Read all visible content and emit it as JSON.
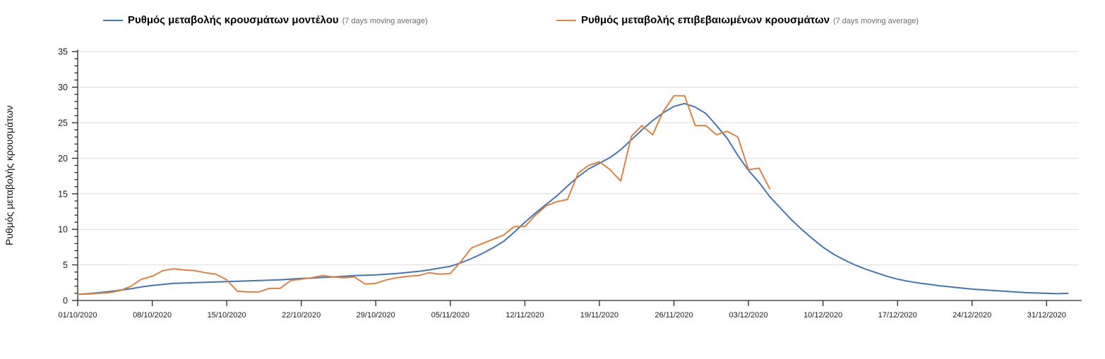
{
  "legend": [
    {
      "label": "Ρυθμός μεταβολής κρουσμάτων μοντέλου",
      "suffix": "(7 days moving average)",
      "color": "#4674af"
    },
    {
      "label": "Ρυθμός μεταβολής επιβεβαιωμένων κρουσμάτων",
      "suffix": "(7 days moving average)",
      "color": "#dc8244"
    }
  ],
  "chart_data": {
    "type": "line",
    "title": "",
    "xlabel": "",
    "ylabel": "Ρυθμός μεταβολής κρουσμάτων",
    "ylim": [
      0,
      35
    ],
    "y_major_step": 5,
    "y_minor_step": 1,
    "grid": "horizontal-major",
    "legend_position": "top",
    "x_unit": "days since 01/10/2020, 1 point per day",
    "x_ticks": [
      {
        "day": 0,
        "label": "01/10/2020"
      },
      {
        "day": 7,
        "label": "08/10/2020"
      },
      {
        "day": 14,
        "label": "15/10/2020"
      },
      {
        "day": 21,
        "label": "22/10/2020"
      },
      {
        "day": 28,
        "label": "29/10/2020"
      },
      {
        "day": 35,
        "label": "05/11/2020"
      },
      {
        "day": 42,
        "label": "12/11/2020"
      },
      {
        "day": 49,
        "label": "19/11/2020"
      },
      {
        "day": 56,
        "label": "26/11/2020"
      },
      {
        "day": 63,
        "label": "03/12/2020"
      },
      {
        "day": 70,
        "label": "10/12/2020"
      },
      {
        "day": 77,
        "label": "17/12/2020"
      },
      {
        "day": 84,
        "label": "24/12/2020"
      },
      {
        "day": 91,
        "label": "31/12/2020"
      }
    ],
    "series": [
      {
        "id": "model",
        "name": "Ρυθμός μεταβολής κρουσμάτων μοντέλου (7 days moving average)",
        "color": "#4674af",
        "start_day": 0,
        "values": [
          0.85,
          0.95,
          1.1,
          1.25,
          1.45,
          1.65,
          1.9,
          2.1,
          2.25,
          2.4,
          2.45,
          2.5,
          2.55,
          2.6,
          2.65,
          2.7,
          2.75,
          2.8,
          2.85,
          2.9,
          3.0,
          3.1,
          3.15,
          3.25,
          3.3,
          3.4,
          3.5,
          3.55,
          3.6,
          3.7,
          3.8,
          3.95,
          4.1,
          4.3,
          4.55,
          4.8,
          5.3,
          5.9,
          6.6,
          7.4,
          8.3,
          9.6,
          11.0,
          12.3,
          13.5,
          14.7,
          16.1,
          17.4,
          18.5,
          19.3,
          20.1,
          21.2,
          22.6,
          24.0,
          25.3,
          26.4,
          27.3,
          27.7,
          27.2,
          26.3,
          24.6,
          22.8,
          20.4,
          18.3,
          16.6,
          14.6,
          13.0,
          11.4,
          10.0,
          8.7,
          7.5,
          6.5,
          5.7,
          5.0,
          4.4,
          3.9,
          3.4,
          3.0,
          2.7,
          2.45,
          2.25,
          2.05,
          1.9,
          1.75,
          1.6,
          1.5,
          1.4,
          1.3,
          1.2,
          1.1,
          1.05,
          1.0,
          0.95,
          1.0
        ]
      },
      {
        "id": "confirmed",
        "name": "Ρυθμός μεταβολής επιβεβαιωμένων κρουσμάτων (7 days moving average)",
        "color": "#dc8244",
        "start_day": 0,
        "values": [
          0.85,
          0.9,
          1.0,
          1.1,
          1.4,
          2.0,
          3.0,
          3.4,
          4.2,
          4.45,
          4.3,
          4.2,
          3.9,
          3.7,
          2.9,
          1.3,
          1.2,
          1.2,
          1.7,
          1.7,
          2.8,
          3.0,
          3.2,
          3.5,
          3.3,
          3.2,
          3.3,
          2.3,
          2.4,
          2.9,
          3.2,
          3.4,
          3.5,
          3.9,
          3.7,
          3.8,
          5.5,
          7.4,
          8.0,
          8.6,
          9.2,
          10.4,
          10.4,
          12.0,
          13.3,
          13.9,
          14.2,
          17.9,
          19.0,
          19.5,
          18.4,
          16.8,
          23.1,
          24.6,
          23.3,
          26.6,
          28.8,
          28.8,
          24.6,
          24.6,
          23.3,
          23.8,
          23.0,
          18.4,
          18.6,
          15.7
        ]
      }
    ]
  }
}
